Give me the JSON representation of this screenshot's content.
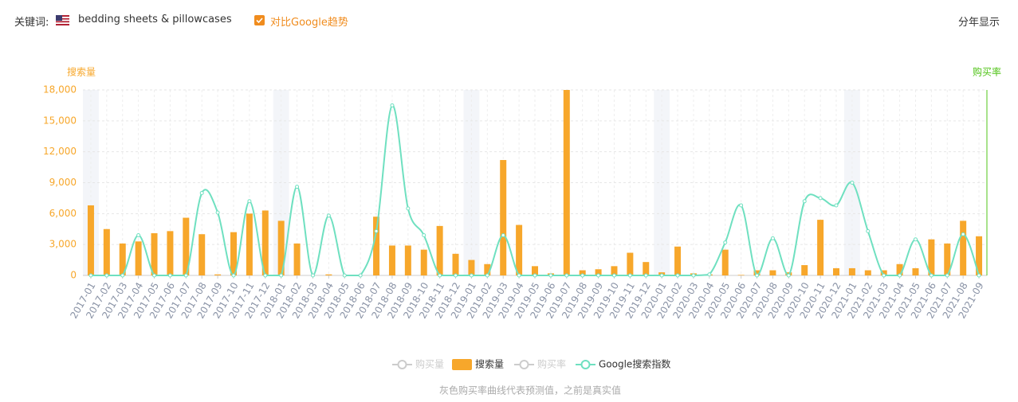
{
  "header": {
    "keyword_label": "关键词:",
    "keyword": "bedding sheets & pillowcases",
    "compare": "对比Google趋势",
    "yearly": "分年显示"
  },
  "chart_data": {
    "type": "bar_line",
    "y_axis_label": "搜索量",
    "y2_axis_label": "购买率",
    "categories": [
      "2017-01",
      "2017-02",
      "2017-03",
      "2017-04",
      "2017-05",
      "2017-06",
      "2017-07",
      "2017-08",
      "2017-09",
      "2017-10",
      "2017-11",
      "2017-12",
      "2018-01",
      "2018-02",
      "2018-03",
      "2018-04",
      "2018-05",
      "2018-06",
      "2018-07",
      "2018-08",
      "2018-09",
      "2018-10",
      "2018-11",
      "2018-12",
      "2019-01",
      "2019-02",
      "2019-03",
      "2019-04",
      "2019-05",
      "2019-06",
      "2019-07",
      "2019-08",
      "2019-09",
      "2019-10",
      "2019-11",
      "2019-12",
      "2020-01",
      "2020-02",
      "2020-03",
      "2020-04",
      "2020-05",
      "2020-06",
      "2020-07",
      "2020-08",
      "2020-09",
      "2020-10",
      "2020-11",
      "2020-12",
      "2021-01",
      "2021-02",
      "2021-03",
      "2021-04",
      "2021-05",
      "2021-06",
      "2021-07",
      "2021-08",
      "2021-09"
    ],
    "series": [
      {
        "name": "搜索量",
        "kind": "bar",
        "color": "#f7a72b",
        "values": [
          6800,
          4500,
          3100,
          3300,
          4100,
          4300,
          5600,
          4000,
          100,
          4200,
          6000,
          6300,
          5300,
          3100,
          0,
          100,
          0,
          0,
          5700,
          2900,
          2900,
          2500,
          4800,
          2100,
          1500,
          1100,
          11200,
          4900,
          900,
          200,
          18000,
          500,
          600,
          900,
          2200,
          1300,
          300,
          2800,
          200,
          100,
          2500,
          50,
          500,
          500,
          300,
          1000,
          5400,
          700,
          700,
          500,
          500,
          1100,
          700,
          3500,
          3100,
          5300,
          3800
        ]
      },
      {
        "name": "Google搜索指数",
        "kind": "line",
        "color": "#6fe0c0",
        "values": [
          0,
          0,
          0,
          3900,
          0,
          0,
          0,
          8000,
          6100,
          0,
          7200,
          0,
          0,
          8600,
          0,
          5800,
          0,
          0,
          4300,
          16500,
          6500,
          3900,
          0,
          0,
          0,
          0,
          3900,
          0,
          0,
          0,
          0,
          0,
          0,
          0,
          0,
          0,
          0,
          0,
          0,
          100,
          3200,
          6800,
          0,
          3600,
          0,
          7200,
          7500,
          6800,
          9000,
          4300,
          0,
          0,
          3500,
          0,
          0,
          4000,
          0
        ]
      }
    ],
    "inactive_legend": [
      "购买量",
      "购买率"
    ],
    "ylim": [
      0,
      18000
    ],
    "yticks": [
      0,
      {
        "value": 3000,
        "label": "3,000"
      },
      {
        "value": 6000,
        "label": "6,000"
      },
      {
        "value": 9000,
        "label": "9,000"
      },
      {
        "value": 12000,
        "label": "12,000"
      },
      {
        "value": 15000,
        "label": "15,000"
      },
      {
        "value": 18000,
        "label": "18,000"
      }
    ],
    "grid": true,
    "note": "灰色购买率曲线代表预测值，之前是真实值"
  }
}
